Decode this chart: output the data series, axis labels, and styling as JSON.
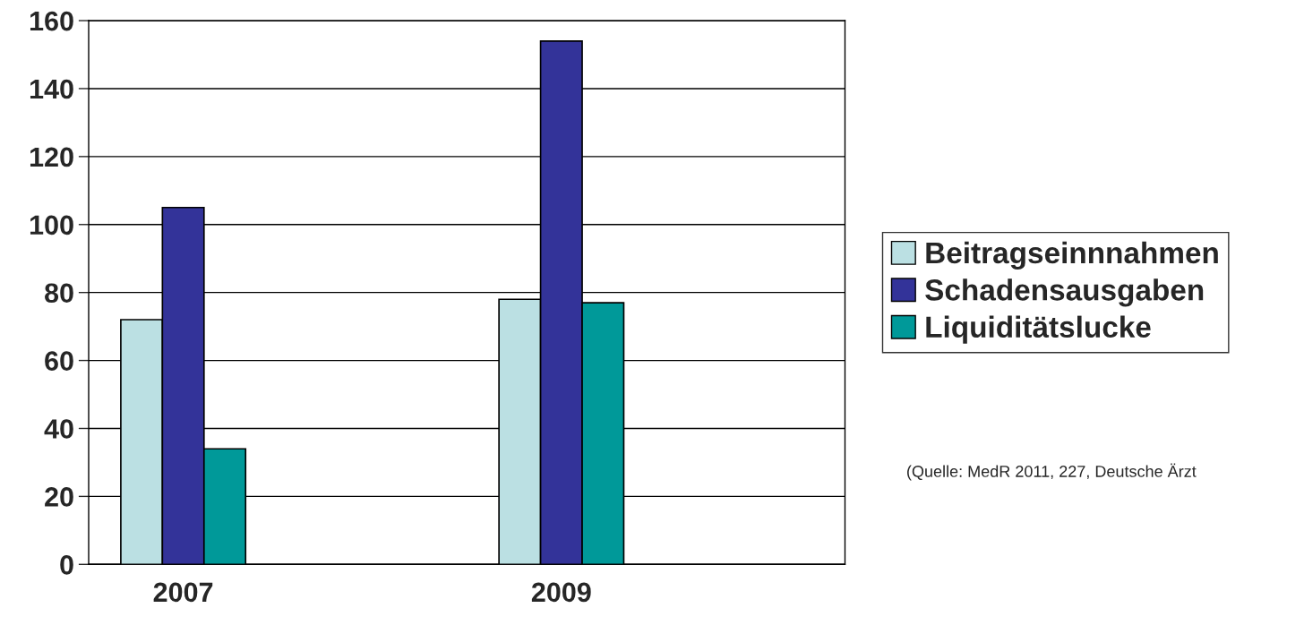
{
  "chart_data": {
    "type": "bar",
    "categories": [
      "2007",
      null,
      "2009",
      null
    ],
    "series": [
      {
        "name": "Beitragseinnnahmen",
        "color": "#bbe0e3",
        "values": [
          72,
          null,
          78,
          null
        ]
      },
      {
        "name": "Schadensausgaben",
        "color": "#333399",
        "values": [
          105,
          null,
          154,
          null
        ]
      },
      {
        "name": "Liquiditätslucke",
        "color": "#009999",
        "values": [
          34,
          null,
          77,
          null
        ]
      }
    ],
    "ylim": [
      0,
      160
    ],
    "yticks": [
      0,
      20,
      40,
      60,
      80,
      100,
      120,
      140,
      160
    ],
    "grid": "y",
    "legend": "right",
    "annotations": [
      "(Quelle: MedR 2011, 227, Deutsche Ärzt"
    ]
  }
}
